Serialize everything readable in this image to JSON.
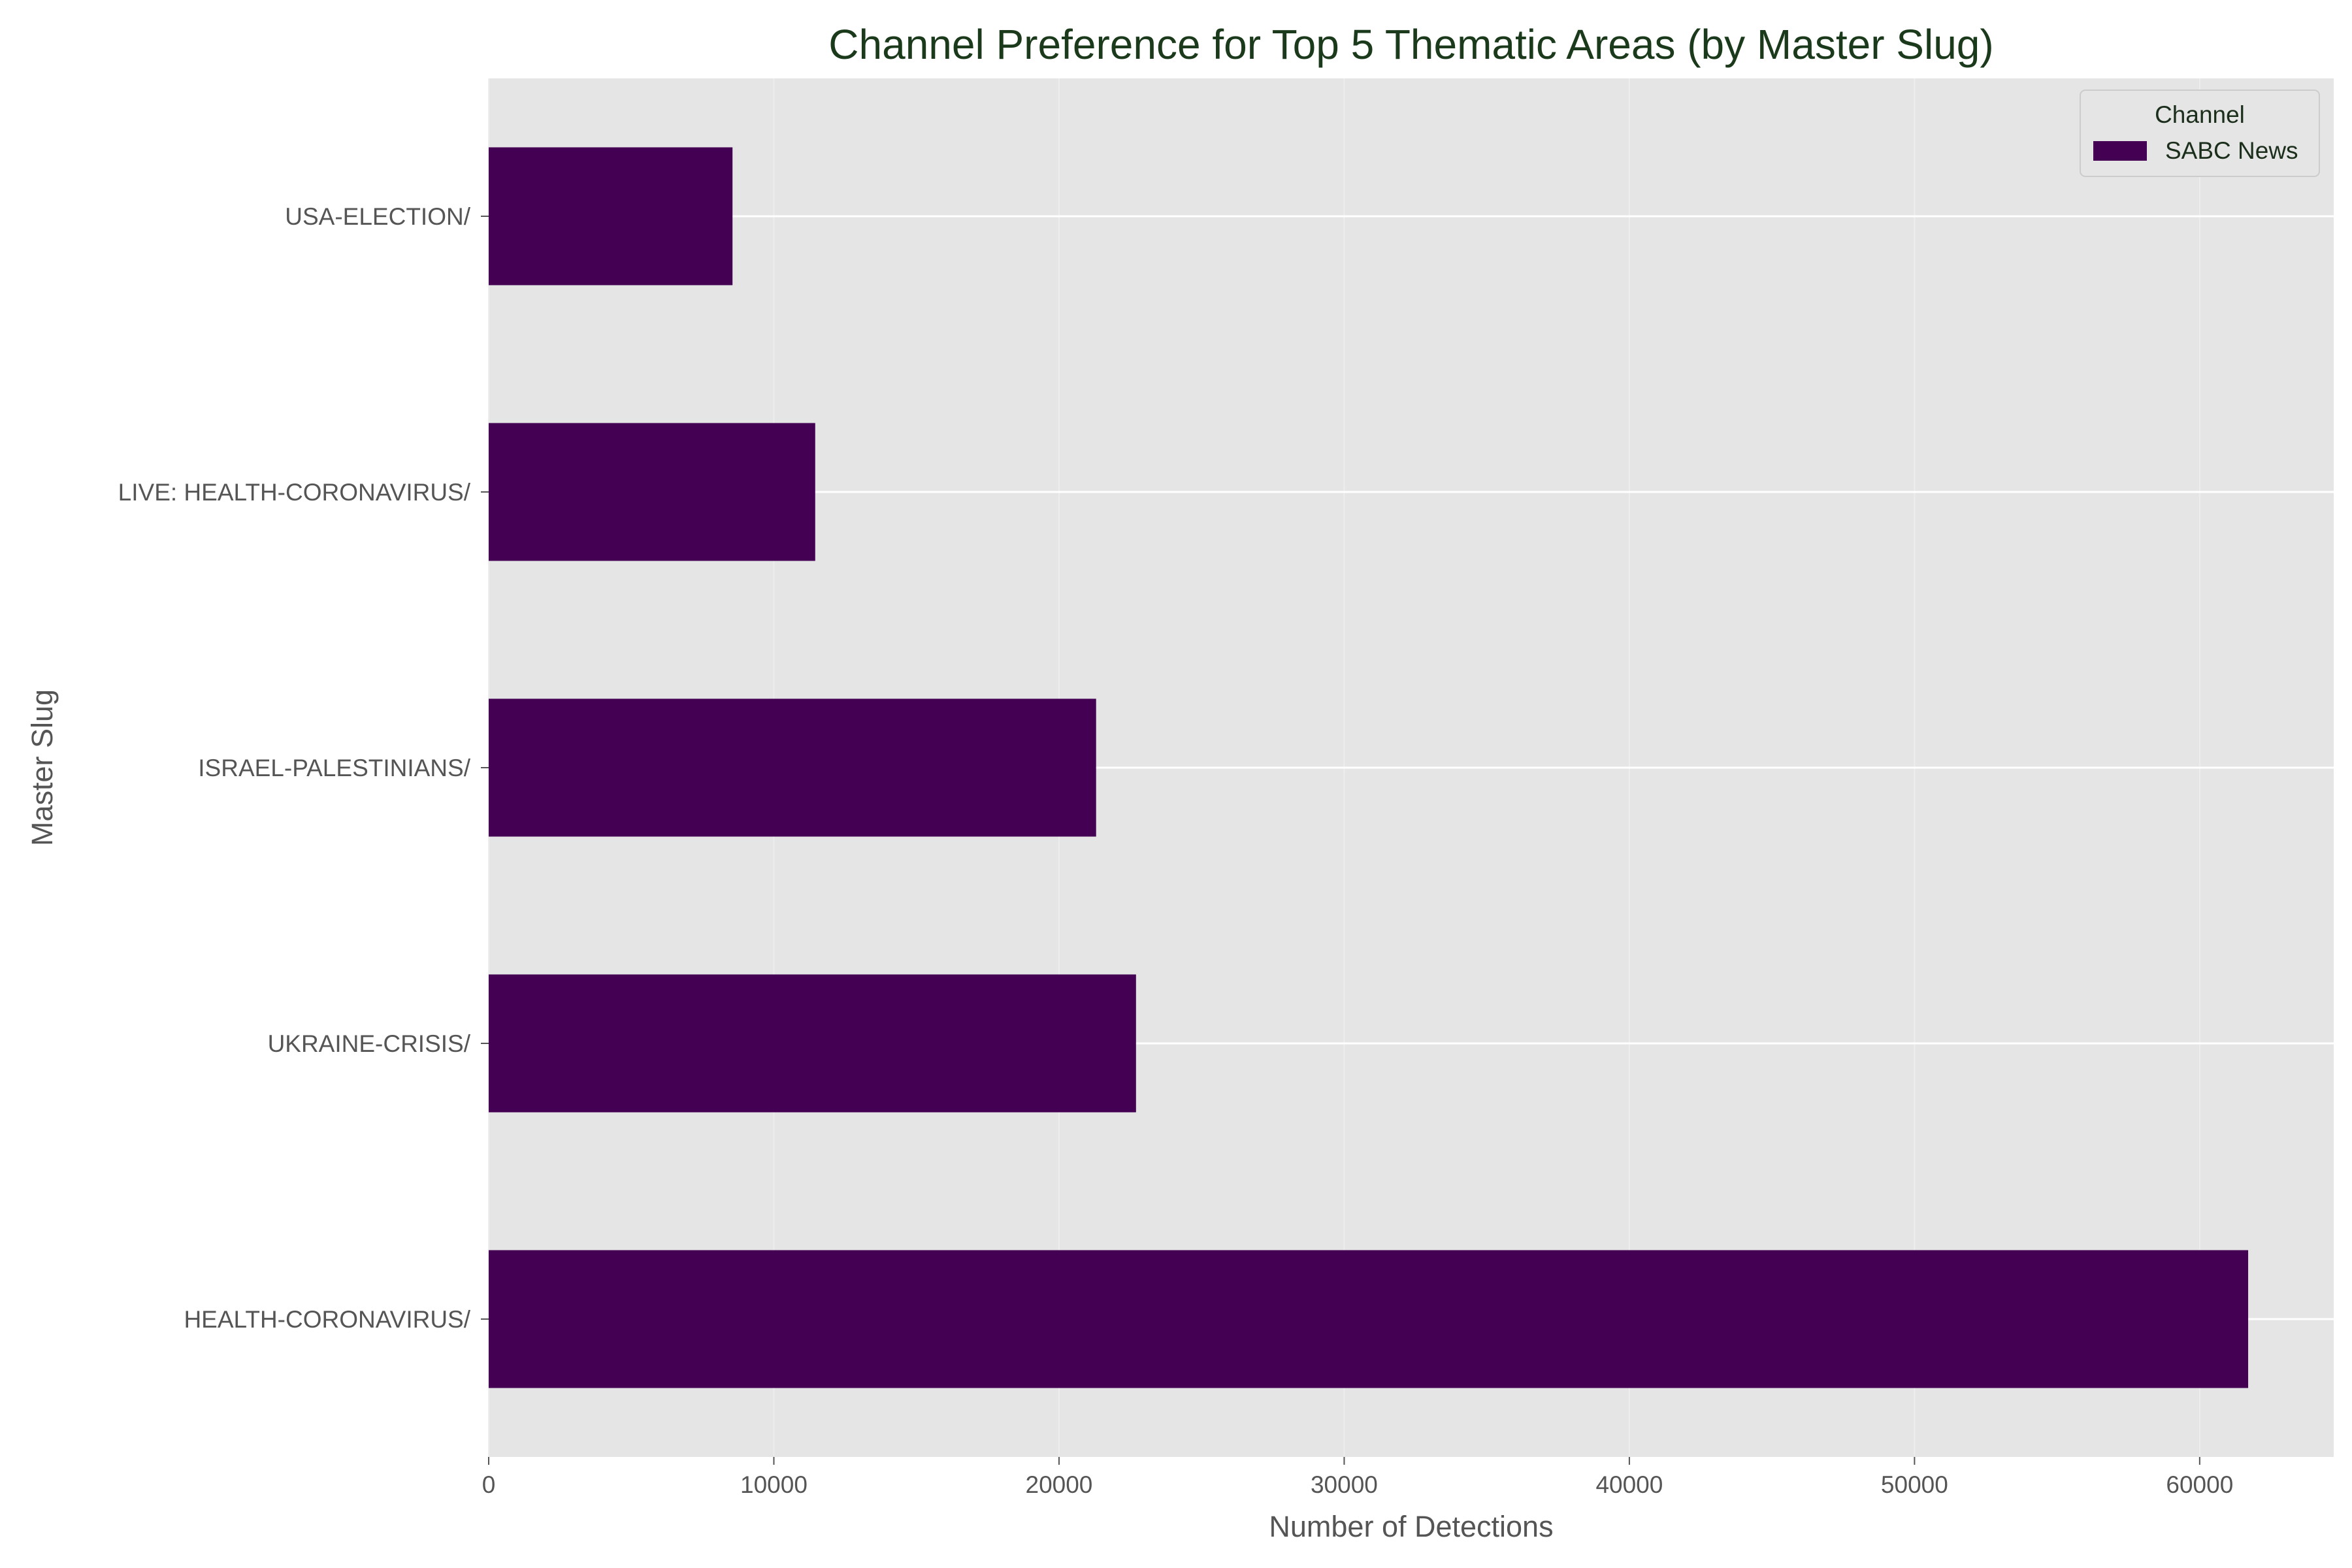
{
  "chart_data": {
    "type": "bar",
    "orientation": "horizontal",
    "title": "Channel Preference for Top 5 Thematic Areas (by Master Slug)",
    "xlabel": "Number of Detections",
    "ylabel": "Master Slug",
    "categories": [
      "HEALTH-CORONAVIRUS/",
      "UKRAINE-CRISIS/",
      "ISRAEL-PALESTINIANS/",
      "LIVE: HEALTH-CORONAVIRUS/",
      "USA-ELECTION/"
    ],
    "series": [
      {
        "name": "SABC News",
        "values": [
          61700,
          22700,
          21300,
          11450,
          8550
        ],
        "color": "#440154"
      }
    ],
    "xlim": [
      0,
      64700
    ],
    "xticks": [
      0,
      10000,
      20000,
      30000,
      40000,
      50000,
      60000
    ],
    "xtick_labels": [
      "0",
      "10000",
      "20000",
      "30000",
      "40000",
      "50000",
      "60000"
    ],
    "legend": {
      "title": "Channel",
      "position": "top-right"
    },
    "grid": true,
    "background": "#e5e5e5"
  }
}
